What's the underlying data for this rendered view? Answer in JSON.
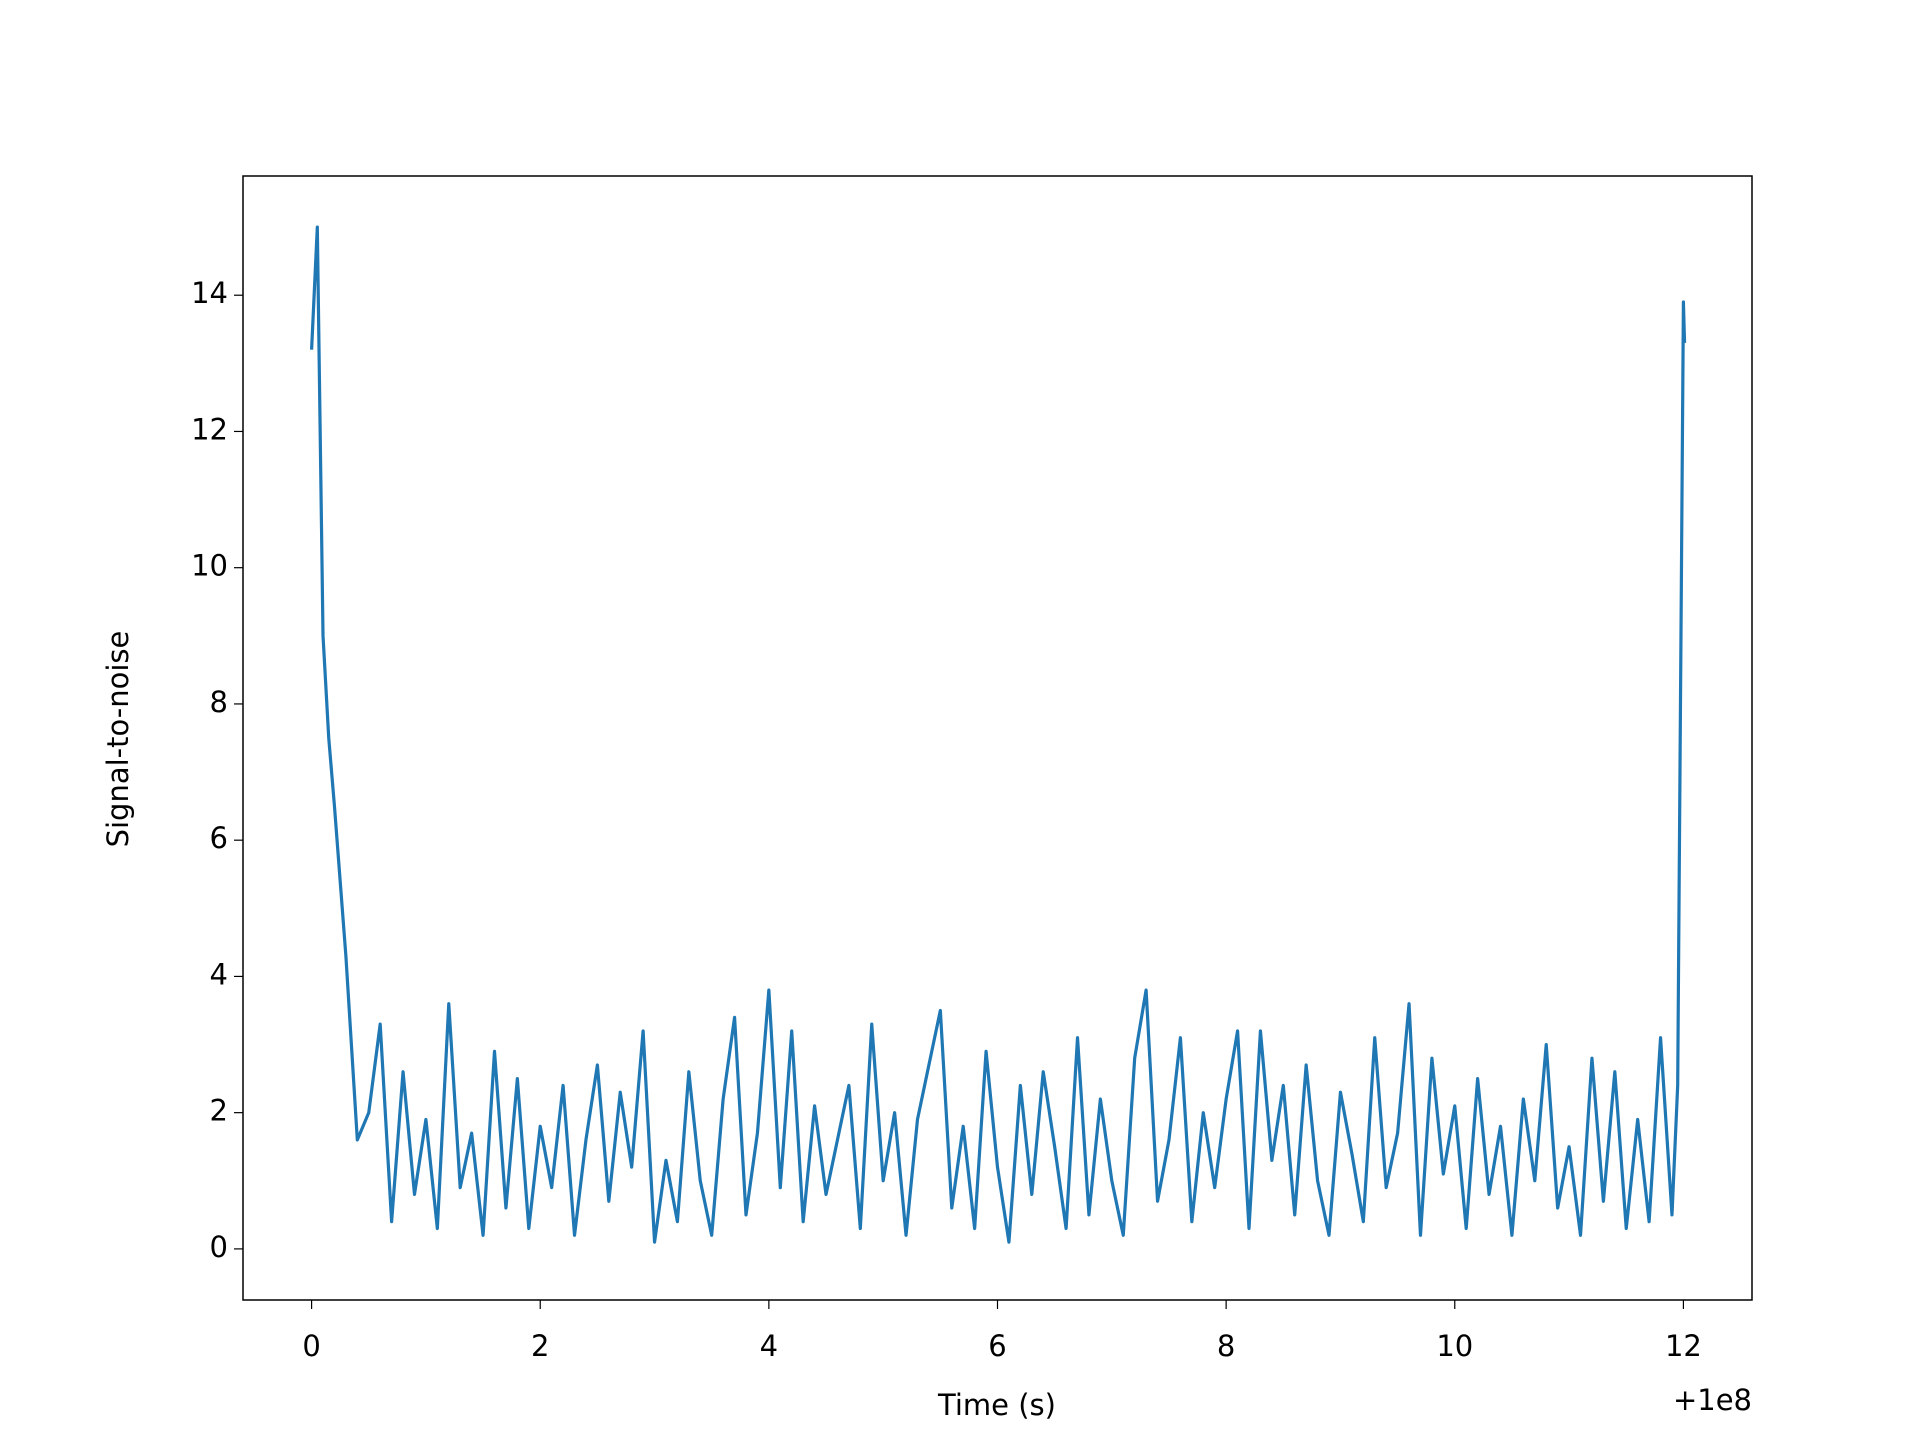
{
  "chart_data": {
    "type": "line",
    "xlabel": "Time (s)",
    "ylabel": "Signal-to-noise",
    "x_offset_label": "+1e8",
    "color": "#1f77b4",
    "x": [
      0,
      0.05,
      0.1,
      0.15,
      0.2,
      0.3,
      0.4,
      0.5,
      0.6,
      0.7,
      0.8,
      0.9,
      1.0,
      1.1,
      1.2,
      1.3,
      1.4,
      1.5,
      1.6,
      1.7,
      1.8,
      1.9,
      2.0,
      2.1,
      2.2,
      2.3,
      2.4,
      2.5,
      2.6,
      2.7,
      2.8,
      2.9,
      3.0,
      3.1,
      3.2,
      3.3,
      3.4,
      3.5,
      3.6,
      3.7,
      3.8,
      3.9,
      4.0,
      4.1,
      4.2,
      4.3,
      4.4,
      4.5,
      4.6,
      4.7,
      4.8,
      4.9,
      5.0,
      5.1,
      5.2,
      5.3,
      5.4,
      5.5,
      5.6,
      5.7,
      5.8,
      5.9,
      6.0,
      6.1,
      6.2,
      6.3,
      6.4,
      6.5,
      6.6,
      6.7,
      6.8,
      6.9,
      7.0,
      7.1,
      7.2,
      7.3,
      7.4,
      7.5,
      7.6,
      7.7,
      7.8,
      7.9,
      8.0,
      8.1,
      8.2,
      8.3,
      8.4,
      8.5,
      8.6,
      8.7,
      8.8,
      8.9,
      9.0,
      9.1,
      9.2,
      9.3,
      9.4,
      9.5,
      9.6,
      9.7,
      9.8,
      9.9,
      10.0,
      10.1,
      10.2,
      10.3,
      10.4,
      10.5,
      10.6,
      10.7,
      10.8,
      10.9,
      11.0,
      11.1,
      11.2,
      11.3,
      11.4,
      11.5,
      11.6,
      11.7,
      11.8,
      11.9,
      11.95,
      12.0,
      12.01
    ],
    "values": [
      13.2,
      15.0,
      9.0,
      7.5,
      6.5,
      4.3,
      1.6,
      2.0,
      3.3,
      0.4,
      2.6,
      0.8,
      1.9,
      0.3,
      3.6,
      0.9,
      1.7,
      0.2,
      2.9,
      0.6,
      2.5,
      0.3,
      1.8,
      0.9,
      2.4,
      0.2,
      1.6,
      2.7,
      0.7,
      2.3,
      1.2,
      3.2,
      0.1,
      1.3,
      0.4,
      2.6,
      1.0,
      0.2,
      2.2,
      3.4,
      0.5,
      1.7,
      3.8,
      0.9,
      3.2,
      0.4,
      2.1,
      0.8,
      1.6,
      2.4,
      0.3,
      3.3,
      1.0,
      2.0,
      0.2,
      1.9,
      2.7,
      3.5,
      0.6,
      1.8,
      0.3,
      2.9,
      1.2,
      0.1,
      2.4,
      0.8,
      2.6,
      1.5,
      0.3,
      3.1,
      0.5,
      2.2,
      1.0,
      0.2,
      2.8,
      3.8,
      0.7,
      1.6,
      3.1,
      0.4,
      2.0,
      0.9,
      2.2,
      3.2,
      0.3,
      3.2,
      1.3,
      2.4,
      0.5,
      2.7,
      1.0,
      0.2,
      2.3,
      1.4,
      0.4,
      3.1,
      0.9,
      1.7,
      3.6,
      0.2,
      2.8,
      1.1,
      2.1,
      0.3,
      2.5,
      0.8,
      1.8,
      0.2,
      2.2,
      1.0,
      3.0,
      0.6,
      1.5,
      0.2,
      2.8,
      0.7,
      2.6,
      0.3,
      1.9,
      0.4,
      3.1,
      0.5,
      2.4,
      13.9,
      13.3
    ],
    "xlim": [
      -0.6,
      12.6
    ],
    "xticks": [
      0,
      2,
      4,
      6,
      8,
      10,
      12
    ],
    "ylim": [
      -0.75,
      15.75
    ],
    "yticks": [
      0,
      2,
      4,
      6,
      8,
      10,
      12,
      14
    ],
    "grid": false
  }
}
